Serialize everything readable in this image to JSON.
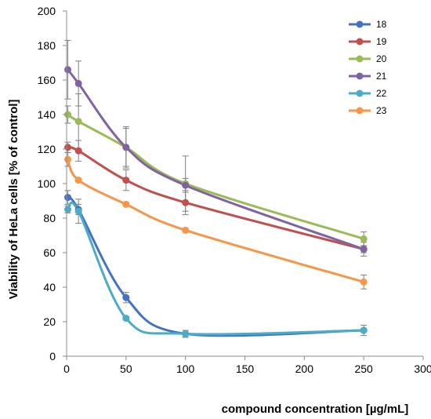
{
  "chart_data": {
    "type": "line",
    "title": "",
    "xlabel": "compound  concentration [µg/mL]",
    "ylabel": "Viability of HeLa cells [% of control]",
    "xlim": [
      0,
      300
    ],
    "ylim": [
      0,
      200
    ],
    "xticks": [
      0,
      50,
      100,
      150,
      200,
      250,
      300
    ],
    "yticks": [
      0,
      20,
      40,
      60,
      80,
      100,
      120,
      140,
      160,
      180,
      200
    ],
    "grid": false,
    "legend_position": "top-right",
    "x": [
      1,
      10,
      50,
      100,
      250
    ],
    "series": [
      {
        "name": "18",
        "color": "#4472C4",
        "values": [
          92,
          85,
          34,
          13,
          15
        ],
        "errors": [
          4,
          3,
          3,
          2,
          3
        ]
      },
      {
        "name": "19",
        "color": "#C0504D",
        "values": [
          121,
          119,
          102,
          89,
          62
        ],
        "errors": [
          3,
          6,
          6,
          7,
          2
        ]
      },
      {
        "name": "20",
        "color": "#9BBB59",
        "values": [
          140,
          136,
          121,
          100,
          68
        ],
        "errors": [
          5,
          16,
          12,
          16,
          4
        ]
      },
      {
        "name": "21",
        "color": "#8064A2",
        "values": [
          166,
          158,
          121,
          99,
          62
        ],
        "errors": [
          17,
          13,
          11,
          4,
          4
        ]
      },
      {
        "name": "22",
        "color": "#4BACC6",
        "values": [
          85,
          84,
          22,
          13,
          15
        ],
        "errors": [
          2,
          7,
          1,
          2,
          1
        ]
      },
      {
        "name": "23",
        "color": "#F79646",
        "values": [
          114,
          102,
          88,
          73,
          43
        ],
        "errors": [
          4,
          1,
          1,
          1,
          4
        ]
      }
    ]
  }
}
